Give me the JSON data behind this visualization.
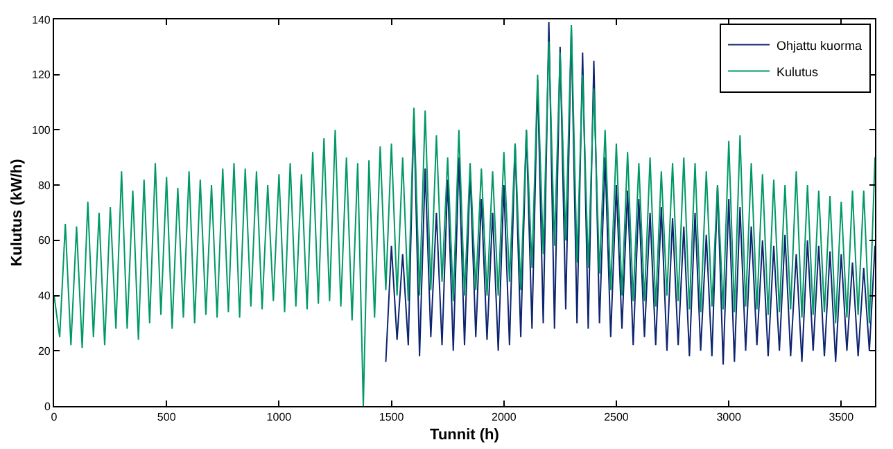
{
  "chart_data": {
    "type": "line",
    "xlabel": "Tunnit (h)",
    "ylabel": "Kulutus (kW/h)",
    "xlim": [
      0,
      3650
    ],
    "ylim": [
      0,
      140
    ],
    "xticks": [
      0,
      500,
      1000,
      1500,
      2000,
      2500,
      3000,
      3500
    ],
    "yticks": [
      0,
      20,
      40,
      60,
      80,
      100,
      120,
      140
    ],
    "grid": false,
    "legend": "top right",
    "marker": "none",
    "line_style": "solid",
    "series": [
      {
        "name": "Ohjattu kuorma",
        "color": "#0d2470",
        "x": [
          1475,
          1500,
          1525,
          1550,
          1575,
          1600,
          1625,
          1650,
          1675,
          1700,
          1725,
          1750,
          1775,
          1800,
          1825,
          1850,
          1875,
          1900,
          1925,
          1950,
          1975,
          2000,
          2025,
          2050,
          2075,
          2100,
          2125,
          2150,
          2175,
          2200,
          2225,
          2250,
          2275,
          2300,
          2325,
          2350,
          2375,
          2400,
          2425,
          2450,
          2475,
          2500,
          2525,
          2550,
          2575,
          2600,
          2625,
          2650,
          2675,
          2700,
          2725,
          2750,
          2775,
          2800,
          2825,
          2850,
          2875,
          2900,
          2925,
          2950,
          2975,
          3000,
          3025,
          3050,
          3075,
          3100,
          3125,
          3150,
          3175,
          3200,
          3225,
          3250,
          3275,
          3300,
          3325,
          3350,
          3375,
          3400,
          3425,
          3450,
          3475,
          3500,
          3525,
          3550,
          3575,
          3600,
          3625,
          3650
        ],
        "values": [
          16,
          58,
          24,
          55,
          22,
          106,
          18,
          86,
          25,
          70,
          22,
          82,
          20,
          90,
          22,
          85,
          25,
          75,
          24,
          70,
          20,
          80,
          22,
          95,
          25,
          100,
          28,
          118,
          30,
          139,
          28,
          130,
          35,
          137,
          30,
          128,
          28,
          125,
          30,
          90,
          25,
          80,
          28,
          78,
          22,
          75,
          25,
          70,
          22,
          72,
          20,
          68,
          22,
          65,
          18,
          70,
          20,
          62,
          18,
          80,
          15,
          75,
          16,
          72,
          20,
          65,
          22,
          60,
          18,
          58,
          20,
          62,
          18,
          55,
          16,
          60,
          20,
          58,
          18,
          56,
          16,
          55,
          20,
          52,
          18,
          50,
          20,
          58
        ]
      },
      {
        "name": "Kulutus",
        "color": "#009966",
        "x": [
          0,
          25,
          50,
          75,
          100,
          125,
          150,
          175,
          200,
          225,
          250,
          275,
          300,
          325,
          350,
          375,
          400,
          425,
          450,
          475,
          500,
          525,
          550,
          575,
          600,
          625,
          650,
          675,
          700,
          725,
          750,
          775,
          800,
          825,
          850,
          875,
          900,
          925,
          950,
          975,
          1000,
          1025,
          1050,
          1075,
          1100,
          1125,
          1150,
          1175,
          1200,
          1225,
          1250,
          1275,
          1300,
          1325,
          1350,
          1375,
          1400,
          1425,
          1450,
          1475,
          1500,
          1525,
          1550,
          1575,
          1600,
          1625,
          1650,
          1675,
          1700,
          1725,
          1750,
          1775,
          1800,
          1825,
          1850,
          1875,
          1900,
          1925,
          1950,
          1975,
          2000,
          2025,
          2050,
          2075,
          2100,
          2125,
          2150,
          2175,
          2200,
          2225,
          2250,
          2275,
          2300,
          2325,
          2350,
          2375,
          2400,
          2425,
          2450,
          2475,
          2500,
          2525,
          2550,
          2575,
          2600,
          2625,
          2650,
          2675,
          2700,
          2725,
          2750,
          2775,
          2800,
          2825,
          2850,
          2875,
          2900,
          2925,
          2950,
          2975,
          3000,
          3025,
          3050,
          3075,
          3100,
          3125,
          3150,
          3175,
          3200,
          3225,
          3250,
          3275,
          3300,
          3325,
          3350,
          3375,
          3400,
          3425,
          3450,
          3475,
          3500,
          3525,
          3550,
          3575,
          3600,
          3625,
          3650
        ],
        "values": [
          40,
          25,
          66,
          22,
          65,
          21,
          74,
          25,
          70,
          22,
          72,
          28,
          85,
          28,
          78,
          24,
          82,
          30,
          88,
          33,
          83,
          28,
          79,
          32,
          85,
          30,
          82,
          33,
          80,
          32,
          86,
          34,
          88,
          32,
          86,
          36,
          85,
          35,
          80,
          38,
          84,
          34,
          88,
          36,
          84,
          35,
          92,
          37,
          97,
          38,
          100,
          36,
          90,
          31,
          88,
          0,
          89,
          32,
          94,
          42,
          95,
          40,
          90,
          38,
          108,
          40,
          107,
          42,
          98,
          45,
          90,
          38,
          100,
          40,
          88,
          42,
          86,
          40,
          85,
          40,
          92,
          45,
          95,
          42,
          100,
          50,
          120,
          55,
          132,
          58,
          128,
          60,
          138,
          52,
          120,
          50,
          115,
          48,
          100,
          42,
          95,
          40,
          92,
          38,
          88,
          38,
          90,
          36,
          85,
          40,
          88,
          38,
          90,
          35,
          88,
          34,
          85,
          36,
          80,
          35,
          96,
          34,
          98,
          36,
          88,
          35,
          84,
          33,
          82,
          34,
          80,
          35,
          85,
          32,
          80,
          33,
          78,
          34,
          76,
          30,
          74,
          32,
          78,
          33,
          78,
          30,
          90
        ]
      }
    ]
  }
}
